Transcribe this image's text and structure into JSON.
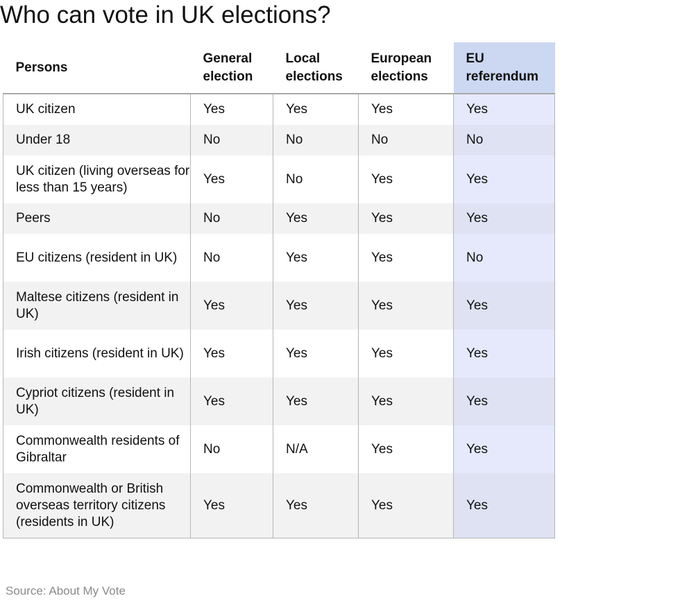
{
  "title": "Who can vote in UK elections?",
  "table": {
    "headers": [
      "Persons",
      "General election",
      "Local elections",
      "European elections",
      "EU referendum"
    ],
    "rows": [
      {
        "person": "UK citizen",
        "general": "Yes",
        "local": "Yes",
        "european": "Yes",
        "referendum": "Yes"
      },
      {
        "person": "Under 18",
        "general": "No",
        "local": "No",
        "european": "No",
        "referendum": "No"
      },
      {
        "person": "UK citizen (living overseas for less than 15 years)",
        "general": "Yes",
        "local": "No",
        "european": "Yes",
        "referendum": "Yes"
      },
      {
        "person": "Peers",
        "general": "No",
        "local": "Yes",
        "european": "Yes",
        "referendum": "Yes"
      },
      {
        "person": "EU citizens (resident in UK)",
        "general": "No",
        "local": "Yes",
        "european": "Yes",
        "referendum": "No"
      },
      {
        "person": "Maltese citizens (resident in UK)",
        "general": "Yes",
        "local": "Yes",
        "european": "Yes",
        "referendum": "Yes"
      },
      {
        "person": "Irish citizens (resident in UK)",
        "general": "Yes",
        "local": "Yes",
        "european": "Yes",
        "referendum": "Yes"
      },
      {
        "person": "Cypriot citizens (resident in UK)",
        "general": "Yes",
        "local": "Yes",
        "european": "Yes",
        "referendum": "Yes"
      },
      {
        "person": "Commonwealth residents of Gibraltar",
        "general": "No",
        "local": "N/A",
        "european": "Yes",
        "referendum": "Yes"
      },
      {
        "person": "Commonwealth or British overseas territory citizens (residents in UK)",
        "general": "Yes",
        "local": "Yes",
        "european": "Yes",
        "referendum": "Yes"
      }
    ]
  },
  "source": "Source: About My Vote",
  "colors": {
    "highlight_header": "#ccd7f1",
    "highlight_cell": "#e5e9fb",
    "row_stripe": "#f2f2f2"
  }
}
